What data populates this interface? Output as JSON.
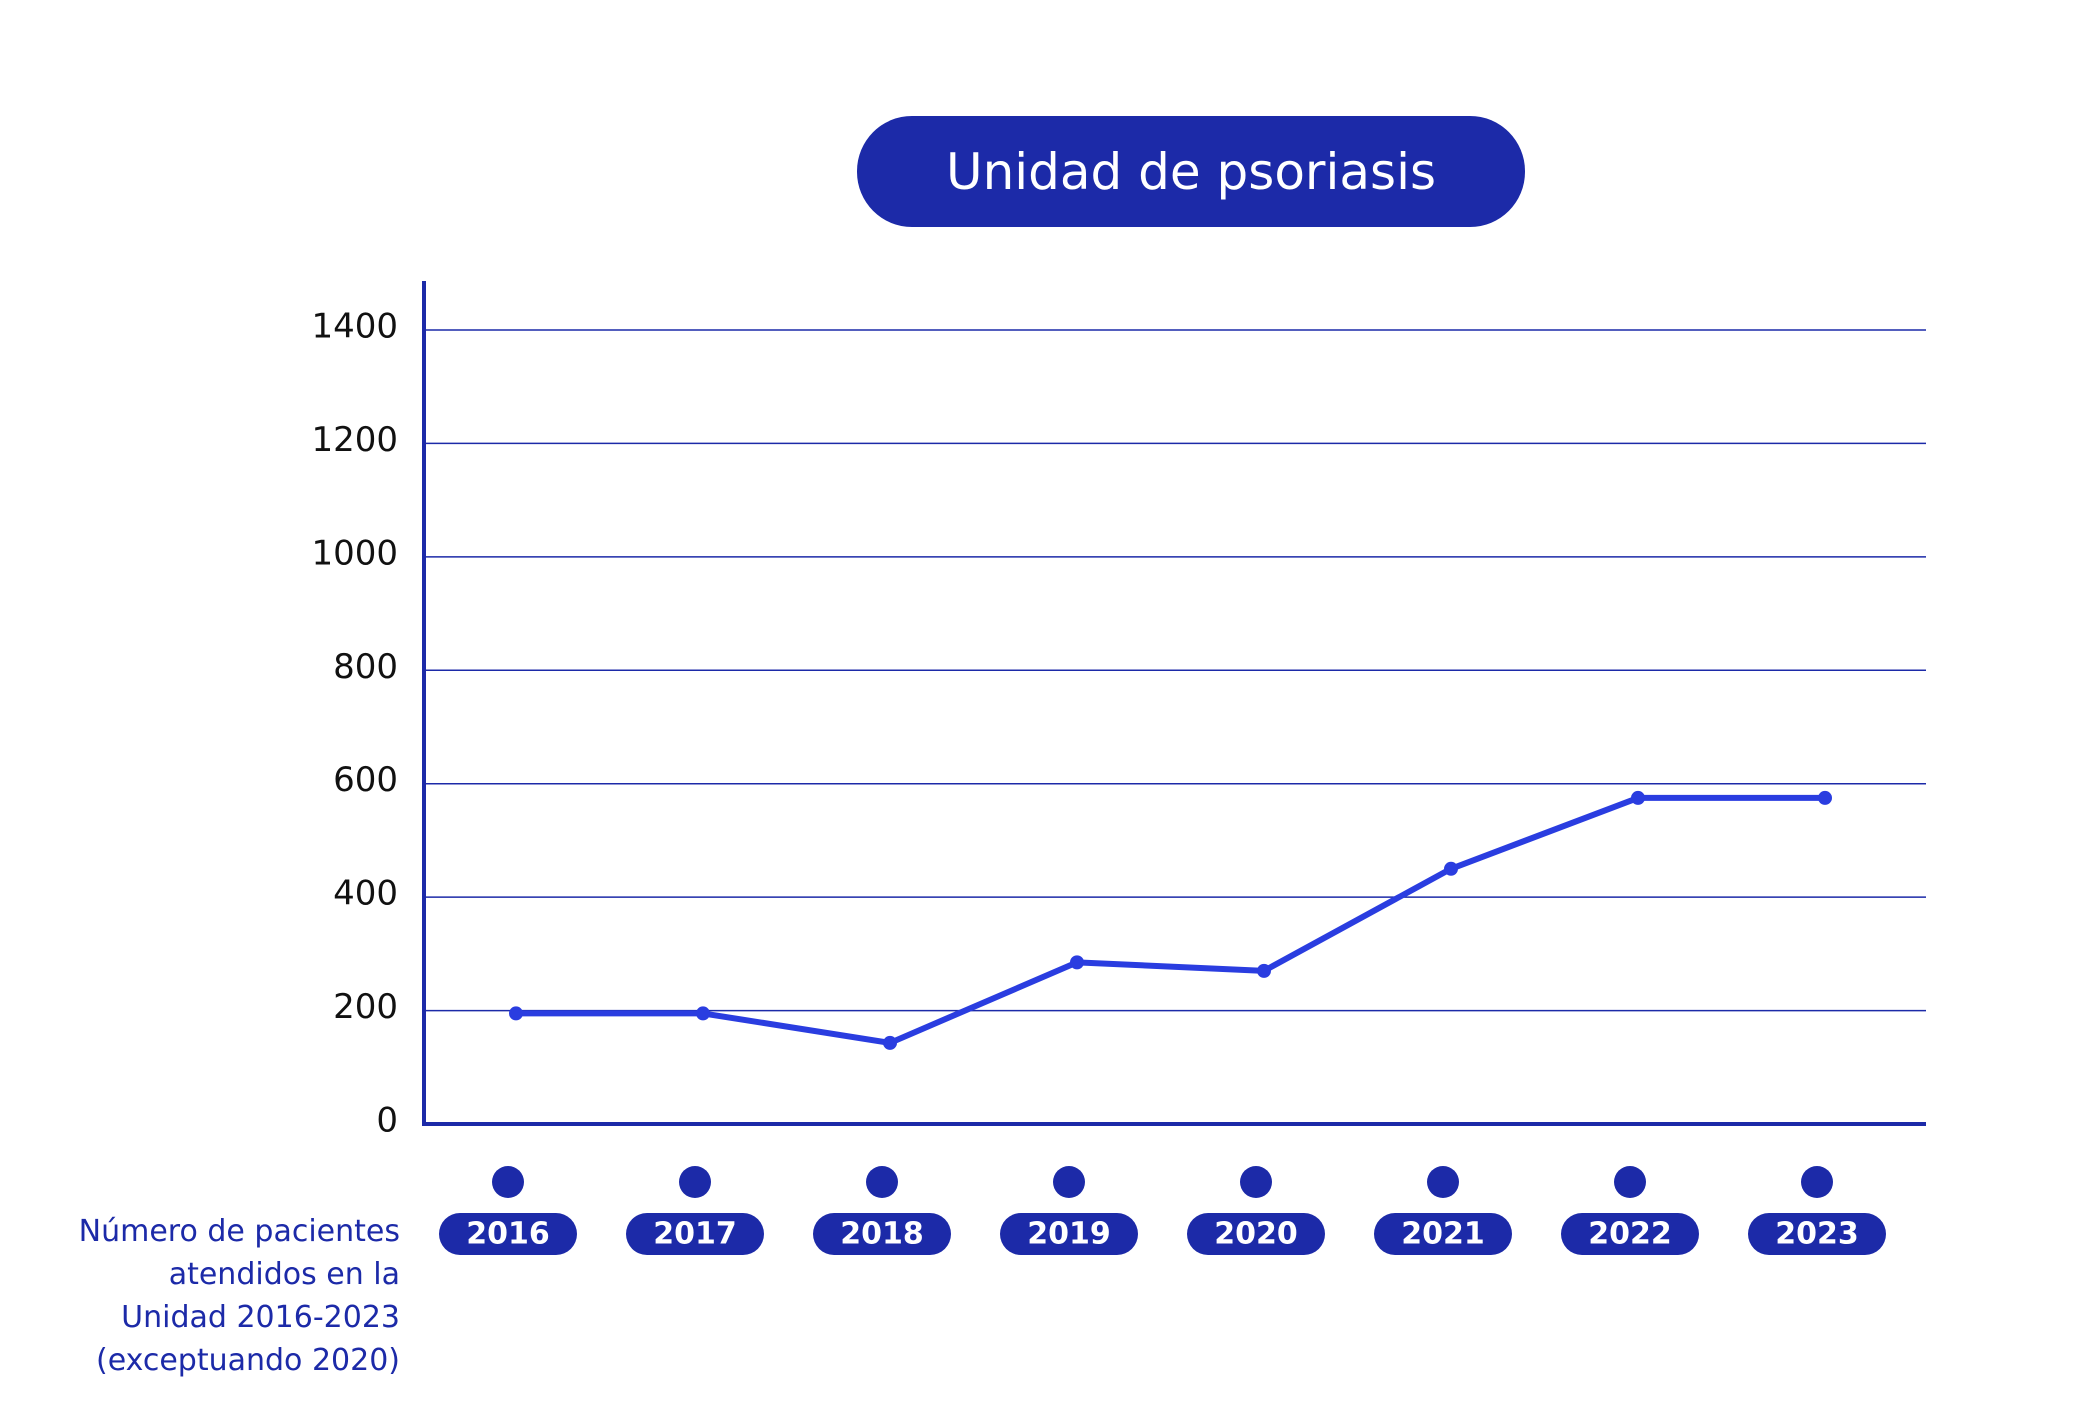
{
  "chart_data": {
    "type": "line",
    "title": "Unidad de psoriasis",
    "xlabel": "",
    "ylabel": "",
    "categories": [
      "2016",
      "2017",
      "2018",
      "2019",
      "2020",
      "2021",
      "2022",
      "2023"
    ],
    "series": [
      {
        "values": [
          195,
          195,
          143,
          285,
          270,
          450,
          575,
          575
        ]
      }
    ],
    "yticks": [
      "0",
      "200",
      "400",
      "600",
      "800",
      "1000",
      "1200",
      "1400"
    ],
    "ylim": [
      0,
      1400
    ],
    "grid": true,
    "note": "Número de pacientes\natendidos en la\nUnidad 2016-2023\n(exceptuando  2020)",
    "colors": {
      "line": "#2a3de0",
      "axis": "#1c2aa8",
      "grid": "#1c2aa8",
      "pill": "#1c2aa8"
    }
  }
}
